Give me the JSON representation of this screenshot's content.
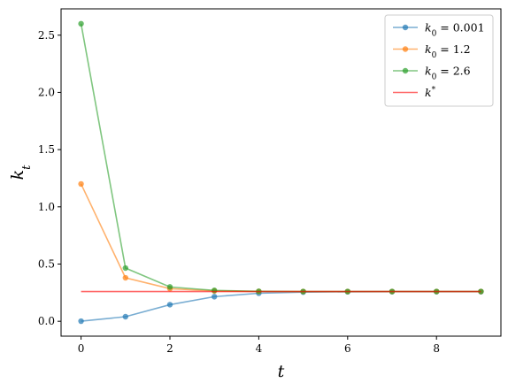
{
  "chart_data": {
    "type": "line",
    "xlabel": "t",
    "ylabel": "k_t",
    "xlim": [
      -0.45,
      9.45
    ],
    "ylim": [
      -0.13,
      2.73
    ],
    "xticks": [
      0,
      2,
      4,
      6,
      8
    ],
    "xtick_labels": [
      "0",
      "2",
      "4",
      "6",
      "8"
    ],
    "yticks": [
      0.0,
      0.5,
      1.0,
      1.5,
      2.0,
      2.5
    ],
    "ytick_labels": [
      "0.0",
      "0.5",
      "1.0",
      "1.5",
      "2.0",
      "2.5"
    ],
    "grid": false,
    "legend_position": "top-right",
    "x": [
      0,
      1,
      2,
      3,
      4,
      5,
      6,
      7,
      8,
      9
    ],
    "series": [
      {
        "name": "k0 = 0.001",
        "label_base": "k",
        "label_sub": "0",
        "label_rest": " = 0.001",
        "color": "#1f77b4",
        "marker": "circle",
        "values": [
          0.001,
          0.04,
          0.145,
          0.215,
          0.245,
          0.255,
          0.258,
          0.259,
          0.259,
          0.259
        ]
      },
      {
        "name": "k0 = 1.2",
        "label_base": "k",
        "label_sub": "0",
        "label_rest": " = 1.2",
        "color": "#ff7f0e",
        "marker": "circle",
        "values": [
          1.2,
          0.38,
          0.285,
          0.265,
          0.261,
          0.26,
          0.26,
          0.26,
          0.26,
          0.26
        ]
      },
      {
        "name": "k0 = 2.6",
        "label_base": "k",
        "label_sub": "0",
        "label_rest": " = 2.6",
        "color": "#2ca02c",
        "marker": "circle",
        "values": [
          2.6,
          0.465,
          0.3,
          0.27,
          0.262,
          0.26,
          0.26,
          0.26,
          0.26,
          0.26
        ]
      },
      {
        "name": "k*",
        "label_base": "k",
        "label_sup": "*",
        "color": "#ff0000",
        "marker": "none",
        "values": [
          0.26,
          0.26,
          0.26,
          0.26,
          0.26,
          0.26,
          0.26,
          0.26,
          0.26,
          0.26
        ]
      }
    ]
  }
}
